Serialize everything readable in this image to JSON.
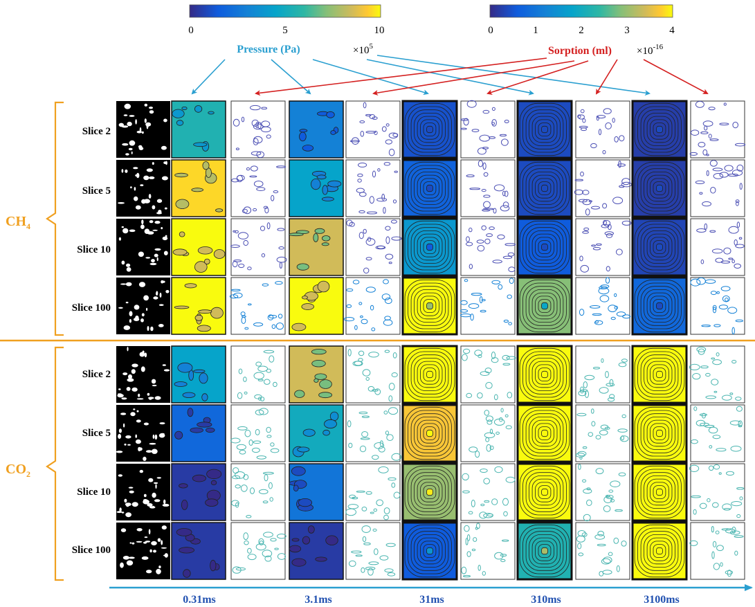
{
  "colorbars": {
    "pressure": {
      "ticks": [
        "0",
        "5",
        "10"
      ],
      "multiplier_base": "×10",
      "multiplier_exp": "5",
      "label": "Pressure (Pa)",
      "label_color": "#2a9fd0"
    },
    "sorption": {
      "ticks": [
        "0",
        "1",
        "2",
        "3",
        "4"
      ],
      "multiplier_base": "×10",
      "multiplier_exp": "-16",
      "label": "Sorption (ml)",
      "label_color": "#d42020"
    }
  },
  "gases": [
    {
      "base": "CH",
      "sub": "4",
      "color": "#f0a020"
    },
    {
      "base": "CO",
      "sub": "2",
      "color": "#f0a020"
    }
  ],
  "slices": [
    "Slice 2",
    "Slice 5",
    "Slice 10",
    "Slice 100"
  ],
  "times": [
    "0.31ms",
    "3.1ms",
    "31ms",
    "310ms",
    "3100ms"
  ],
  "colors": {
    "pressure_arrow": "#2a9fd0",
    "sorption_arrow": "#d42020",
    "time_axis": "#2a9fd0",
    "time_label": "#2050b0",
    "separator": "#f0a020",
    "bracket": "#f0a020"
  },
  "pressure_levels": {
    "CH4": [
      [
        0.55,
        0.3,
        0.12,
        0.1,
        0.06
      ],
      [
        0.95,
        0.45,
        0.18,
        0.1,
        0.06
      ],
      [
        1.0,
        0.85,
        0.4,
        0.15,
        0.08
      ],
      [
        1.0,
        1.0,
        1.0,
        0.72,
        0.2
      ]
    ],
    "CO2": [
      [
        0.45,
        0.85,
        1.0,
        1.0,
        1.0
      ],
      [
        0.2,
        0.5,
        0.92,
        1.0,
        1.0
      ],
      [
        0.05,
        0.25,
        0.75,
        1.0,
        1.0
      ],
      [
        0.05,
        0.05,
        0.15,
        0.55,
        1.0
      ]
    ]
  }
}
